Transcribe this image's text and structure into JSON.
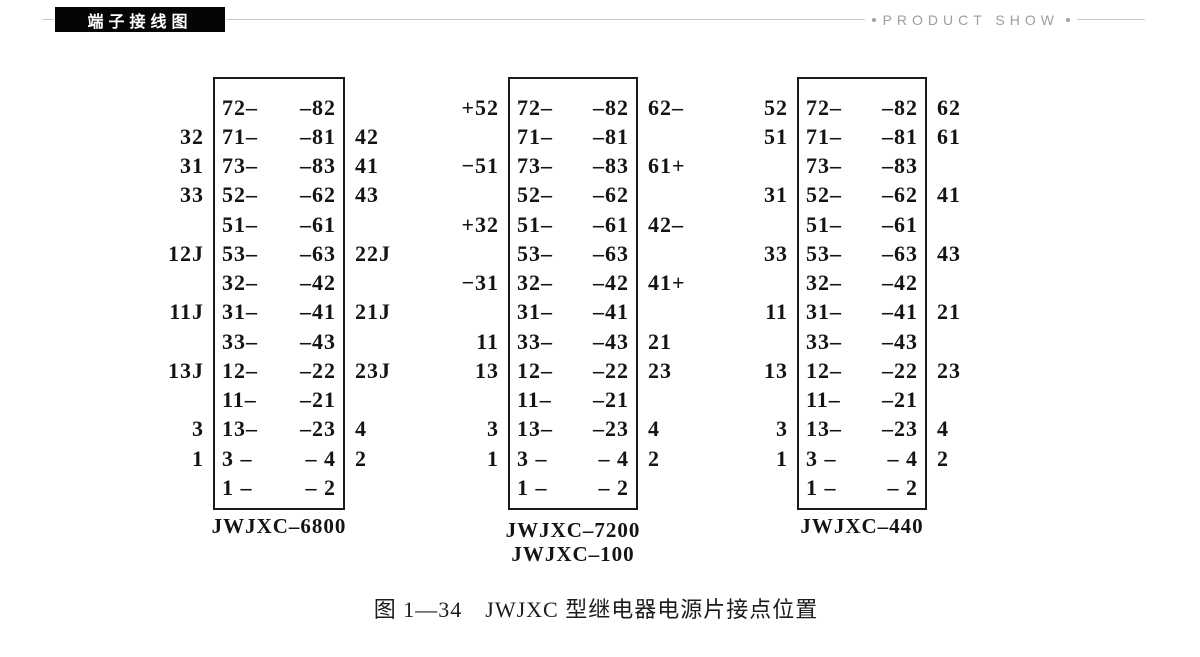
{
  "header": {
    "tag_label": "端子接线图",
    "product_show": "PRODUCT SHOW"
  },
  "diagrams": [
    {
      "model": "JWJXC-6800",
      "label_lines": [
        "JWJXC–6800"
      ],
      "rows": [
        [
          "",
          "72–",
          "–82",
          ""
        ],
        [
          "32",
          "71–",
          "–81",
          "42"
        ],
        [
          "31",
          "73–",
          "–83",
          "41"
        ],
        [
          "33",
          "52–",
          "–62",
          "43"
        ],
        [
          "",
          "51–",
          "–61",
          ""
        ],
        [
          "12J",
          "53–",
          "–63",
          "22J"
        ],
        [
          "",
          "32–",
          "–42",
          ""
        ],
        [
          "11J",
          "31–",
          "–41",
          "21J"
        ],
        [
          "",
          "33–",
          "–43",
          ""
        ],
        [
          "13J",
          "12–",
          "–22",
          "23J"
        ],
        [
          "",
          "11–",
          "–21",
          ""
        ],
        [
          "3",
          "13–",
          "–23",
          "4"
        ],
        [
          "1",
          "3 –",
          "– 4",
          "2"
        ],
        [
          "",
          "1 –",
          "– 2",
          ""
        ]
      ]
    },
    {
      "model": "JWJXC-7200 / JWJXC-100",
      "label_lines": [
        "JWJXC–7200",
        "JWJXC–100"
      ],
      "rows": [
        [
          "+52",
          "72–",
          "–82",
          "62–"
        ],
        [
          "",
          "71–",
          "–81",
          ""
        ],
        [
          "−51",
          "73–",
          "–83",
          "61+"
        ],
        [
          "",
          "52–",
          "–62",
          ""
        ],
        [
          "+32",
          "51–",
          "–61",
          "42–"
        ],
        [
          "",
          "53–",
          "–63",
          ""
        ],
        [
          "−31",
          "32–",
          "–42",
          "41+"
        ],
        [
          "",
          "31–",
          "–41",
          ""
        ],
        [
          "11",
          "33–",
          "–43",
          "21"
        ],
        [
          "13",
          "12–",
          "–22",
          "23"
        ],
        [
          "",
          "11–",
          "–21",
          ""
        ],
        [
          "3",
          "13–",
          "–23",
          "4"
        ],
        [
          "1",
          "3 –",
          "– 4",
          "2"
        ],
        [
          "",
          "1 –",
          "– 2",
          ""
        ]
      ]
    },
    {
      "model": "JWJXC-440",
      "label_lines": [
        "JWJXC–440"
      ],
      "rows": [
        [
          "52",
          "72–",
          "–82",
          "62"
        ],
        [
          "51",
          "71–",
          "–81",
          "61"
        ],
        [
          "",
          "73–",
          "–83",
          ""
        ],
        [
          "31",
          "52–",
          "–62",
          "41"
        ],
        [
          "",
          "51–",
          "–61",
          ""
        ],
        [
          "33",
          "53–",
          "–63",
          "43"
        ],
        [
          "",
          "32–",
          "–42",
          ""
        ],
        [
          "11",
          "31–",
          "–41",
          "21"
        ],
        [
          "",
          "33–",
          "–43",
          ""
        ],
        [
          "13",
          "12–",
          "–22",
          "23"
        ],
        [
          "",
          "11–",
          "–21",
          ""
        ],
        [
          "3",
          "13–",
          "–23",
          "4"
        ],
        [
          "1",
          "3 –",
          "– 4",
          "2"
        ],
        [
          "",
          "1 –",
          "– 2",
          ""
        ]
      ]
    }
  ],
  "caption": "图 1—34　JWJXC 型继电器电源片接点位置",
  "colors": {
    "tag_background": "#050505",
    "line_gray": "#cccccc",
    "product_show_gray": "#9e9e9e",
    "ink": "#1a1a1a"
  }
}
